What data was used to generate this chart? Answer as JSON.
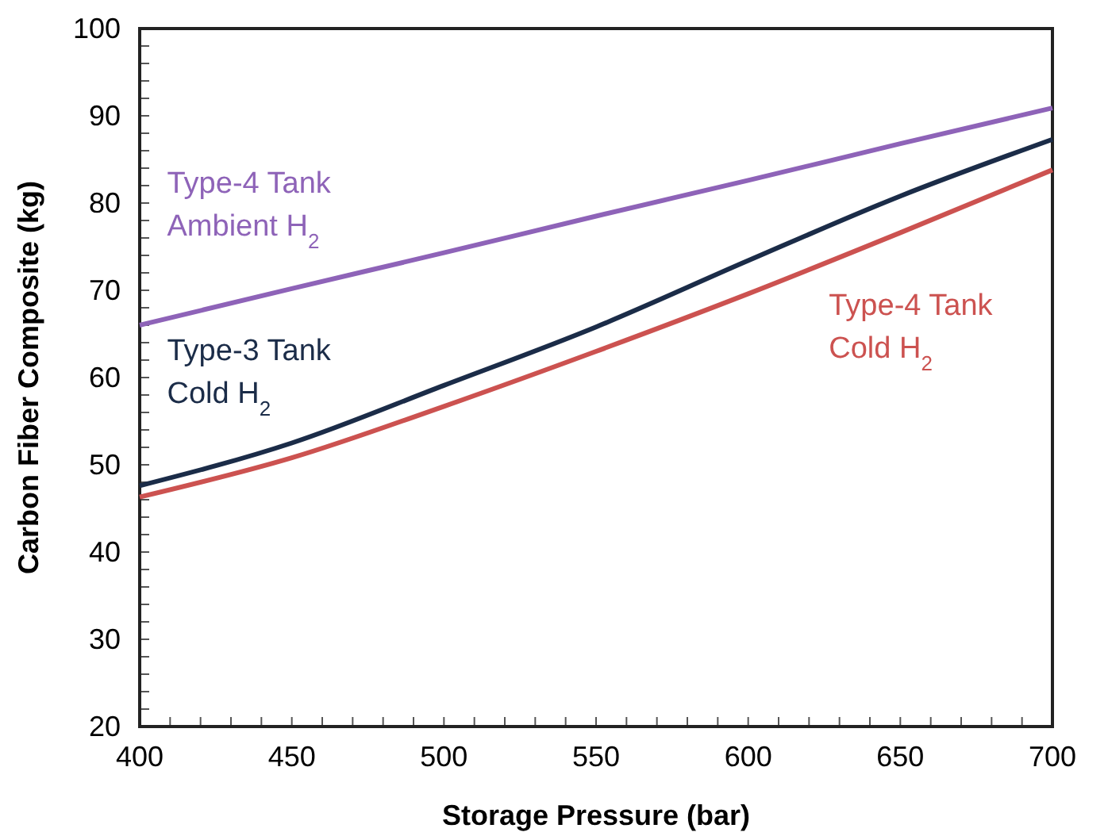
{
  "chart_data": {
    "type": "line",
    "xlabel": "Storage Pressure (bar)",
    "ylabel": "Carbon Fiber Composite (kg)",
    "x": [
      400,
      450,
      500,
      550,
      600,
      650,
      700
    ],
    "series": [
      {
        "name": "Type-4 Tank\nAmbient H$_{2}$",
        "color": "#8e63b8",
        "values": [
          66.0,
          70.2,
          74.3,
          78.5,
          82.6,
          86.8,
          90.9
        ]
      },
      {
        "name": "Type-3 Tank\nCold H$_{2}$",
        "color": "#1b2c48",
        "values": [
          47.6,
          52.5,
          59.1,
          65.8,
          73.4,
          80.8,
          87.3
        ]
      },
      {
        "name": "Type-4 Tank\nCold H$_{2}$",
        "color": "#cc5250",
        "values": [
          46.3,
          50.8,
          56.7,
          63.0,
          69.6,
          76.6,
          83.8
        ]
      }
    ],
    "xlim": [
      400,
      700
    ],
    "ylim": [
      20,
      100
    ],
    "xticks": [
      400,
      {
        "value": 410,
        "label": null
      },
      {
        "value": 420,
        "label": null
      },
      {
        "value": 430,
        "label": null
      },
      {
        "value": 440,
        "label": null
      },
      450,
      {
        "value": 460,
        "label": null
      },
      {
        "value": 470,
        "label": null
      },
      {
        "value": 480,
        "label": null
      },
      {
        "value": 490,
        "label": null
      },
      500,
      {
        "value": 510,
        "label": null
      },
      {
        "value": 520,
        "label": null
      },
      {
        "value": 530,
        "label": null
      },
      {
        "value": 540,
        "label": null
      },
      550,
      {
        "value": 560,
        "label": null
      },
      {
        "value": 570,
        "label": null
      },
      {
        "value": 580,
        "label": null
      },
      {
        "value": 590,
        "label": null
      },
      600,
      {
        "value": 610,
        "label": null
      },
      {
        "value": 620,
        "label": null
      },
      {
        "value": 630,
        "label": null
      },
      {
        "value": 640,
        "label": null
      },
      650,
      {
        "value": 660,
        "label": null
      },
      {
        "value": 670,
        "label": null
      },
      {
        "value": 680,
        "label": null
      },
      {
        "value": 690,
        "label": null
      },
      700
    ],
    "yticks": [
      20,
      {
        "value": 22,
        "label": null
      },
      {
        "value": 24,
        "label": null
      },
      {
        "value": 26,
        "label": null
      },
      {
        "value": 28,
        "label": null
      },
      30,
      {
        "value": 32,
        "label": null
      },
      {
        "value": 34,
        "label": null
      },
      {
        "value": 36,
        "label": null
      },
      {
        "value": 38,
        "label": null
      },
      40,
      {
        "value": 42,
        "label": null
      },
      {
        "value": 44,
        "label": null
      },
      {
        "value": 46,
        "label": null
      },
      {
        "value": 48,
        "label": null
      },
      50,
      {
        "value": 52,
        "label": null
      },
      {
        "value": 54,
        "label": null
      },
      {
        "value": 56,
        "label": null
      },
      {
        "value": 58,
        "label": null
      },
      60,
      {
        "value": 62,
        "label": null
      },
      {
        "value": 64,
        "label": null
      },
      {
        "value": 66,
        "label": null
      },
      {
        "value": 68,
        "label": null
      },
      70,
      {
        "value": 72,
        "label": null
      },
      {
        "value": 74,
        "label": null
      },
      {
        "value": 76,
        "label": null
      },
      {
        "value": 78,
        "label": null
      },
      80,
      {
        "value": 82,
        "label": null
      },
      {
        "value": 84,
        "label": null
      },
      {
        "value": 86,
        "label": null
      },
      {
        "value": 88,
        "label": null
      },
      90,
      {
        "value": 92,
        "label": null
      },
      {
        "value": 94,
        "label": null
      },
      {
        "value": 96,
        "label": null
      },
      {
        "value": 98,
        "label": null
      },
      100
    ],
    "grid": false,
    "legend": false,
    "marker": "none",
    "line_style": "solid"
  }
}
